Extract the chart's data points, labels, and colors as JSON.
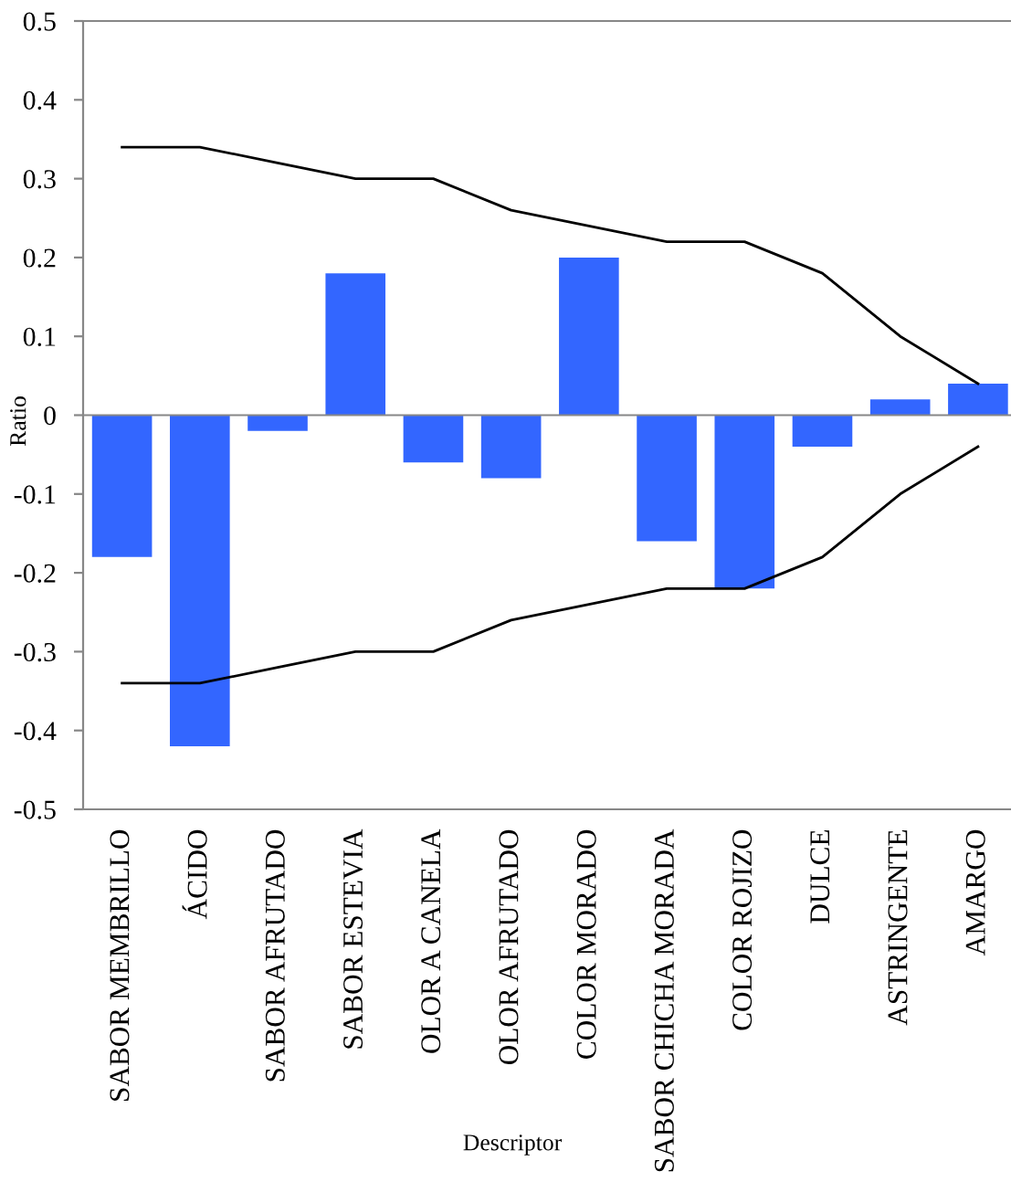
{
  "chart_data": {
    "type": "bar",
    "xlabel": "Descriptor",
    "ylabel": "Ratio",
    "categories": [
      "SABOR MEMBRILLO",
      "ÁCIDO",
      "SABOR AFRUTADO",
      "SABOR ESTEVIA",
      "OLOR A CANELA",
      "OLOR AFRUTADO",
      "COLOR MORADO",
      "SABOR CHICHA MORADA",
      "COLOR ROJIZO",
      "DULCE",
      "ASTRINGENTE",
      "AMARGO"
    ],
    "series": [
      {
        "color": "#3366ff",
        "values": [
          -0.18,
          -0.42,
          -0.02,
          0.18,
          -0.06,
          -0.08,
          0.2,
          -0.16,
          -0.22,
          -0.04,
          0.02,
          0.04
        ]
      },
      {
        "type": "line",
        "color": "#000000",
        "values": [
          0.34,
          0.34,
          0.32,
          0.3,
          0.3,
          0.26,
          0.24,
          0.22,
          0.22,
          0.18,
          0.1,
          0.04
        ]
      },
      {
        "type": "line",
        "color": "#000000",
        "values": [
          -0.34,
          -0.34,
          -0.32,
          -0.3,
          -0.3,
          -0.26,
          -0.24,
          -0.22,
          -0.22,
          -0.18,
          -0.1,
          -0.04
        ]
      }
    ],
    "ylim": [
      -0.5,
      0.5
    ],
    "yticks": [
      -0.5,
      -0.4,
      -0.3,
      -0.2,
      -0.1,
      0,
      0.1,
      0.2,
      0.3,
      0.4,
      0.5
    ],
    "ref_lines": [
      {
        "axis": "y",
        "value": 0,
        "color": "#878787"
      }
    ]
  }
}
